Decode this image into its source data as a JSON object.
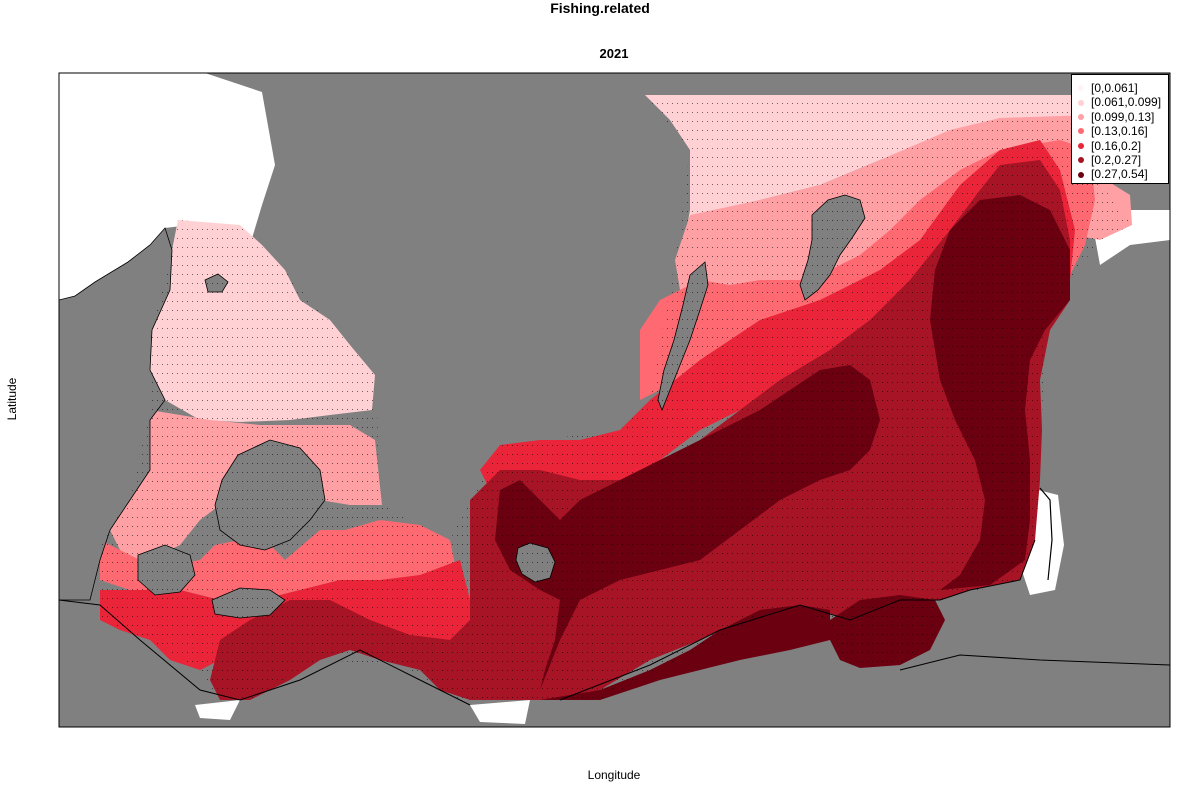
{
  "figure": {
    "title": "Fishing.related",
    "subtitle": "2021",
    "xlabel": "Longitude",
    "ylabel": "Latitude"
  },
  "colors": {
    "land": "#808080",
    "sea": "#ffffff",
    "bins": [
      "#fff4f4",
      "#ffd1d4",
      "#ffa0a5",
      "#ff6a72",
      "#ea2439",
      "#a71425",
      "#6b0011"
    ]
  },
  "legend": {
    "placement": "top-right",
    "items": [
      {
        "label": "[0,0.061]",
        "color": "#fff4f4"
      },
      {
        "label": "[0.061,0.099]",
        "color": "#ffd1d4"
      },
      {
        "label": "[0.099,0.13]",
        "color": "#ffa0a5"
      },
      {
        "label": "[0.13,0.16]",
        "color": "#ff6a72"
      },
      {
        "label": "[0.16,0.2]",
        "color": "#ea2439"
      },
      {
        "label": "[0.2,0.27]",
        "color": "#a71425"
      },
      {
        "label": "[0.27,0.54]",
        "color": "#6b0011"
      }
    ]
  }
}
